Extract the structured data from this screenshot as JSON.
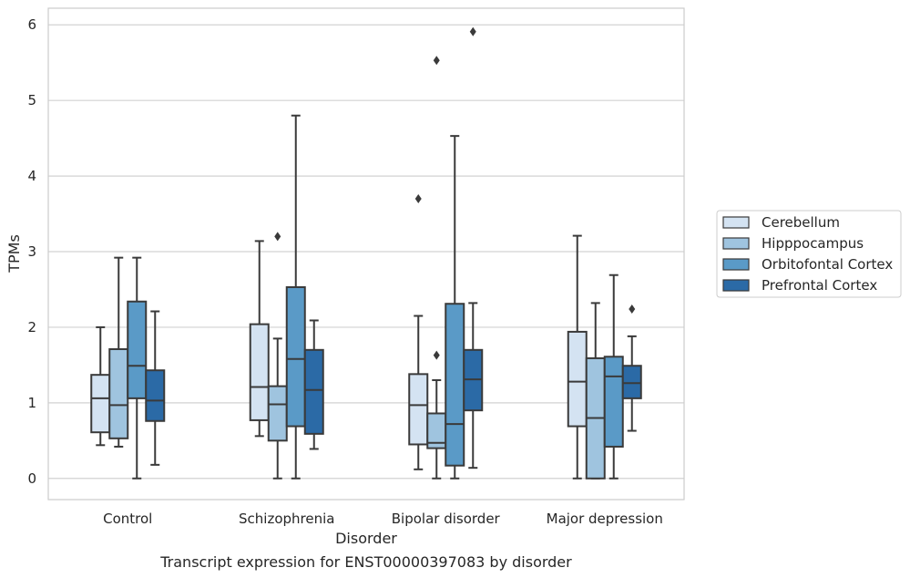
{
  "chart_data": {
    "type": "box",
    "xlabel": "Disorder",
    "ylabel": "TPMs",
    "caption": "Transcript expression for ENST00000397083 by disorder",
    "ylim": [
      -0.28,
      6.22
    ],
    "yticks": [
      0,
      1,
      2,
      3,
      4,
      5,
      6
    ],
    "grid": true,
    "legend_position": "right",
    "categories": [
      "Control",
      "Schizophrenia",
      "Bipolar disorder",
      "Major depression"
    ],
    "series": [
      {
        "name": "Cerebellum",
        "color": "#d4e3f2",
        "boxes": [
          {
            "whisker_low": 0.44,
            "q1": 0.61,
            "median": 1.06,
            "q3": 1.37,
            "whisker_high": 2.0,
            "outliers": []
          },
          {
            "whisker_low": 0.56,
            "q1": 0.77,
            "median": 1.21,
            "q3": 2.04,
            "whisker_high": 3.14,
            "outliers": []
          },
          {
            "whisker_low": 0.12,
            "q1": 0.45,
            "median": 0.97,
            "q3": 1.38,
            "whisker_high": 2.15,
            "outliers": [
              3.7
            ]
          },
          {
            "whisker_low": 0.0,
            "q1": 0.69,
            "median": 1.28,
            "q3": 1.94,
            "whisker_high": 3.21,
            "outliers": []
          }
        ]
      },
      {
        "name": "Hipppocampus",
        "color": "#9fc4df",
        "boxes": [
          {
            "whisker_low": 0.42,
            "q1": 0.53,
            "median": 0.97,
            "q3": 1.71,
            "whisker_high": 2.92,
            "outliers": []
          },
          {
            "whisker_low": 0.0,
            "q1": 0.5,
            "median": 0.98,
            "q3": 1.22,
            "whisker_high": 1.85,
            "outliers": [
              3.2
            ]
          },
          {
            "whisker_low": 0.0,
            "q1": 0.4,
            "median": 0.47,
            "q3": 0.86,
            "whisker_high": 1.3,
            "outliers": [
              1.63,
              5.53
            ]
          },
          {
            "whisker_low": 0.0,
            "q1": 0.0,
            "median": 0.8,
            "q3": 1.59,
            "whisker_high": 2.32,
            "outliers": []
          }
        ]
      },
      {
        "name": "Orbitofontal Cortex",
        "color": "#5a9ac7",
        "boxes": [
          {
            "whisker_low": 0.0,
            "q1": 1.06,
            "median": 1.49,
            "q3": 2.34,
            "whisker_high": 2.92,
            "outliers": []
          },
          {
            "whisker_low": 0.0,
            "q1": 0.69,
            "median": 1.58,
            "q3": 2.53,
            "whisker_high": 4.8,
            "outliers": []
          },
          {
            "whisker_low": 0.0,
            "q1": 0.17,
            "median": 0.72,
            "q3": 2.31,
            "whisker_high": 4.53,
            "outliers": []
          },
          {
            "whisker_low": 0.0,
            "q1": 0.42,
            "median": 1.35,
            "q3": 1.61,
            "whisker_high": 2.69,
            "outliers": []
          }
        ]
      },
      {
        "name": "Prefrontal Cortex",
        "color": "#2b6aa6",
        "boxes": [
          {
            "whisker_low": 0.18,
            "q1": 0.76,
            "median": 1.03,
            "q3": 1.43,
            "whisker_high": 2.21,
            "outliers": []
          },
          {
            "whisker_low": 0.39,
            "q1": 0.59,
            "median": 1.17,
            "q3": 1.7,
            "whisker_high": 2.09,
            "outliers": []
          },
          {
            "whisker_low": 0.14,
            "q1": 0.9,
            "median": 1.31,
            "q3": 1.7,
            "whisker_high": 2.32,
            "outliers": [
              5.91
            ]
          },
          {
            "whisker_low": 0.63,
            "q1": 1.06,
            "median": 1.26,
            "q3": 1.49,
            "whisker_high": 1.88,
            "outliers": [
              2.24
            ]
          }
        ]
      }
    ]
  }
}
